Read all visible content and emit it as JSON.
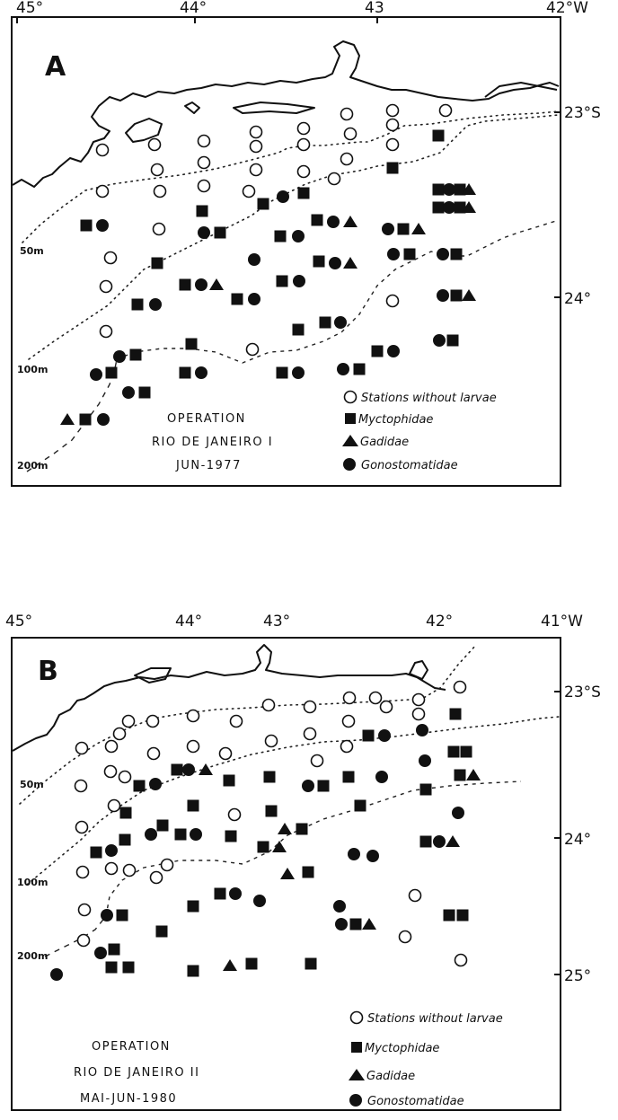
{
  "map_a": {
    "panel_letter": "A",
    "lon_ticks": [
      "45°",
      "44°",
      "43",
      "42°W"
    ],
    "lat_ticks": [
      "23°S",
      "24°"
    ],
    "isobaths": [
      "50m",
      "100m",
      "200m"
    ],
    "operation": [
      "OPERATION",
      "RIO DE JANEIRO I",
      "JUN-1977"
    ],
    "legend": [
      "Stations without larvae",
      "Myctophidae",
      "Gadidae",
      "Gonostomatidae"
    ]
  },
  "map_b": {
    "panel_letter": "B",
    "lon_ticks": [
      "45°",
      "44°",
      "43°",
      "42°",
      "41°W"
    ],
    "lat_ticks": [
      "23°S",
      "24°",
      "25°"
    ],
    "isobaths": [
      "50m",
      "100m",
      "200m"
    ],
    "operation": [
      "OPERATION",
      "RIO DE JANEIRO II",
      "MAI-JUN-1980"
    ],
    "legend": [
      "Stations without larvae",
      "Myctophidae",
      "Gadidae",
      "Gonostomatidae"
    ]
  },
  "symbols": {
    "empty_station": "open-circle",
    "myctophidae": "filled-square",
    "gadidae": "filled-triangle",
    "gonostomatidae": "filled-circle"
  }
}
